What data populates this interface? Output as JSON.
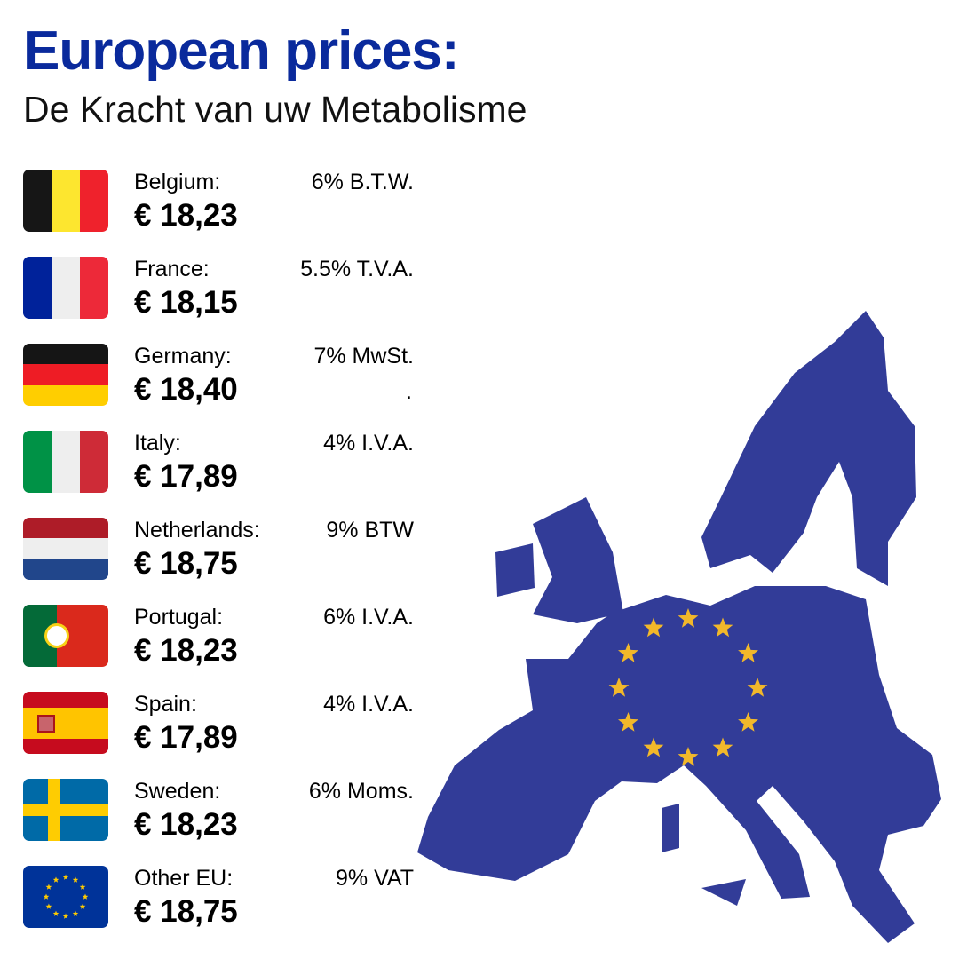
{
  "header": {
    "title": "European prices:",
    "subtitle": "De Kracht van uw Metabolisme"
  },
  "countries": [
    {
      "name": "Belgium:",
      "price": "€ 18,23",
      "vat": "6% B.T.W.",
      "flag": "belgium"
    },
    {
      "name": "France:",
      "price": "€ 18,15",
      "vat": "5.5% T.V.A.",
      "flag": "france"
    },
    {
      "name": "Germany:",
      "price": "€ 18,40",
      "vat": "7% MwSt.",
      "extra": ".",
      "flag": "germany"
    },
    {
      "name": "Italy:",
      "price": "€ 17,89",
      "vat": "4% I.V.A.",
      "flag": "italy"
    },
    {
      "name": "Netherlands:",
      "price": "€ 18,75",
      "vat": "9% BTW",
      "flag": "netherlands"
    },
    {
      "name": "Portugal:",
      "price": "€ 18,23",
      "vat": "6% I.V.A.",
      "flag": "portugal"
    },
    {
      "name": "Spain:",
      "price": "€ 17,89",
      "vat": "4% I.V.A.",
      "flag": "spain"
    },
    {
      "name": "Sweden:",
      "price": "€ 18,23",
      "vat": "6% Moms.",
      "flag": "sweden"
    },
    {
      "name": "Other EU:",
      "price": "€ 18,75",
      "vat": "9% VAT",
      "flag": "eu"
    }
  ],
  "colors": {
    "title": "#0a2a9c",
    "map": "#323c98",
    "stars": "#f2b82a"
  }
}
